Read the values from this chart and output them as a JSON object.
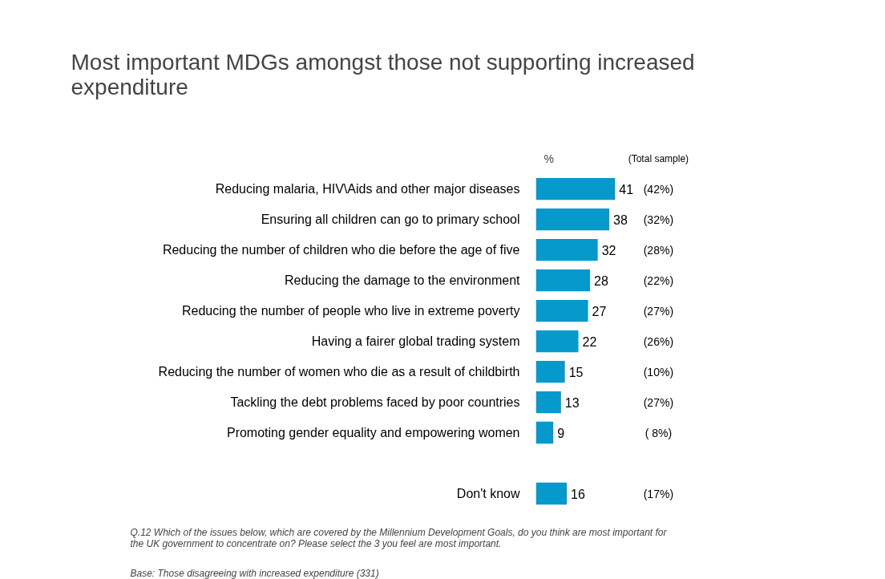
{
  "chart_data": {
    "type": "bar",
    "orientation": "horizontal",
    "title": "Most important MDGs amongst those not supporting increased expenditure",
    "xlabel": "%",
    "categories": [
      "Reducing malaria, HIV\\Aids and other major diseases",
      "Ensuring all children can go to primary school",
      "Reducing the number of children who die before the age of five",
      "Reducing the damage to the environment",
      "Reducing the number of people who live in extreme poverty",
      "Having a fairer global trading system",
      "Reducing the number of women who die as a result of childbirth",
      "Tackling the debt problems faced by poor countries",
      "Promoting gender equality and empowering women",
      null,
      "Don't know"
    ],
    "values": [
      41,
      38,
      32,
      28,
      27,
      22,
      15,
      13,
      9,
      null,
      16
    ],
    "color": "#0599cc",
    "data_labels": true,
    "tick_labels": false,
    "grid": false,
    "annotations": [
      "(Total sample)",
      "(42%)",
      "(32%)",
      "(28%)",
      "(22%)",
      "(27%)",
      "(26%)",
      "(10%)",
      "(27%)",
      "( 8%)",
      "(17%)",
      "Q.12  Which of the issues below, which are covered by the Millennium Development Goals, do you think are most important for the UK government to concentrate on?  Please select the 3 you feel are most important.",
      "Base:  Those disagreeing with increased expenditure (331)"
    ]
  }
}
